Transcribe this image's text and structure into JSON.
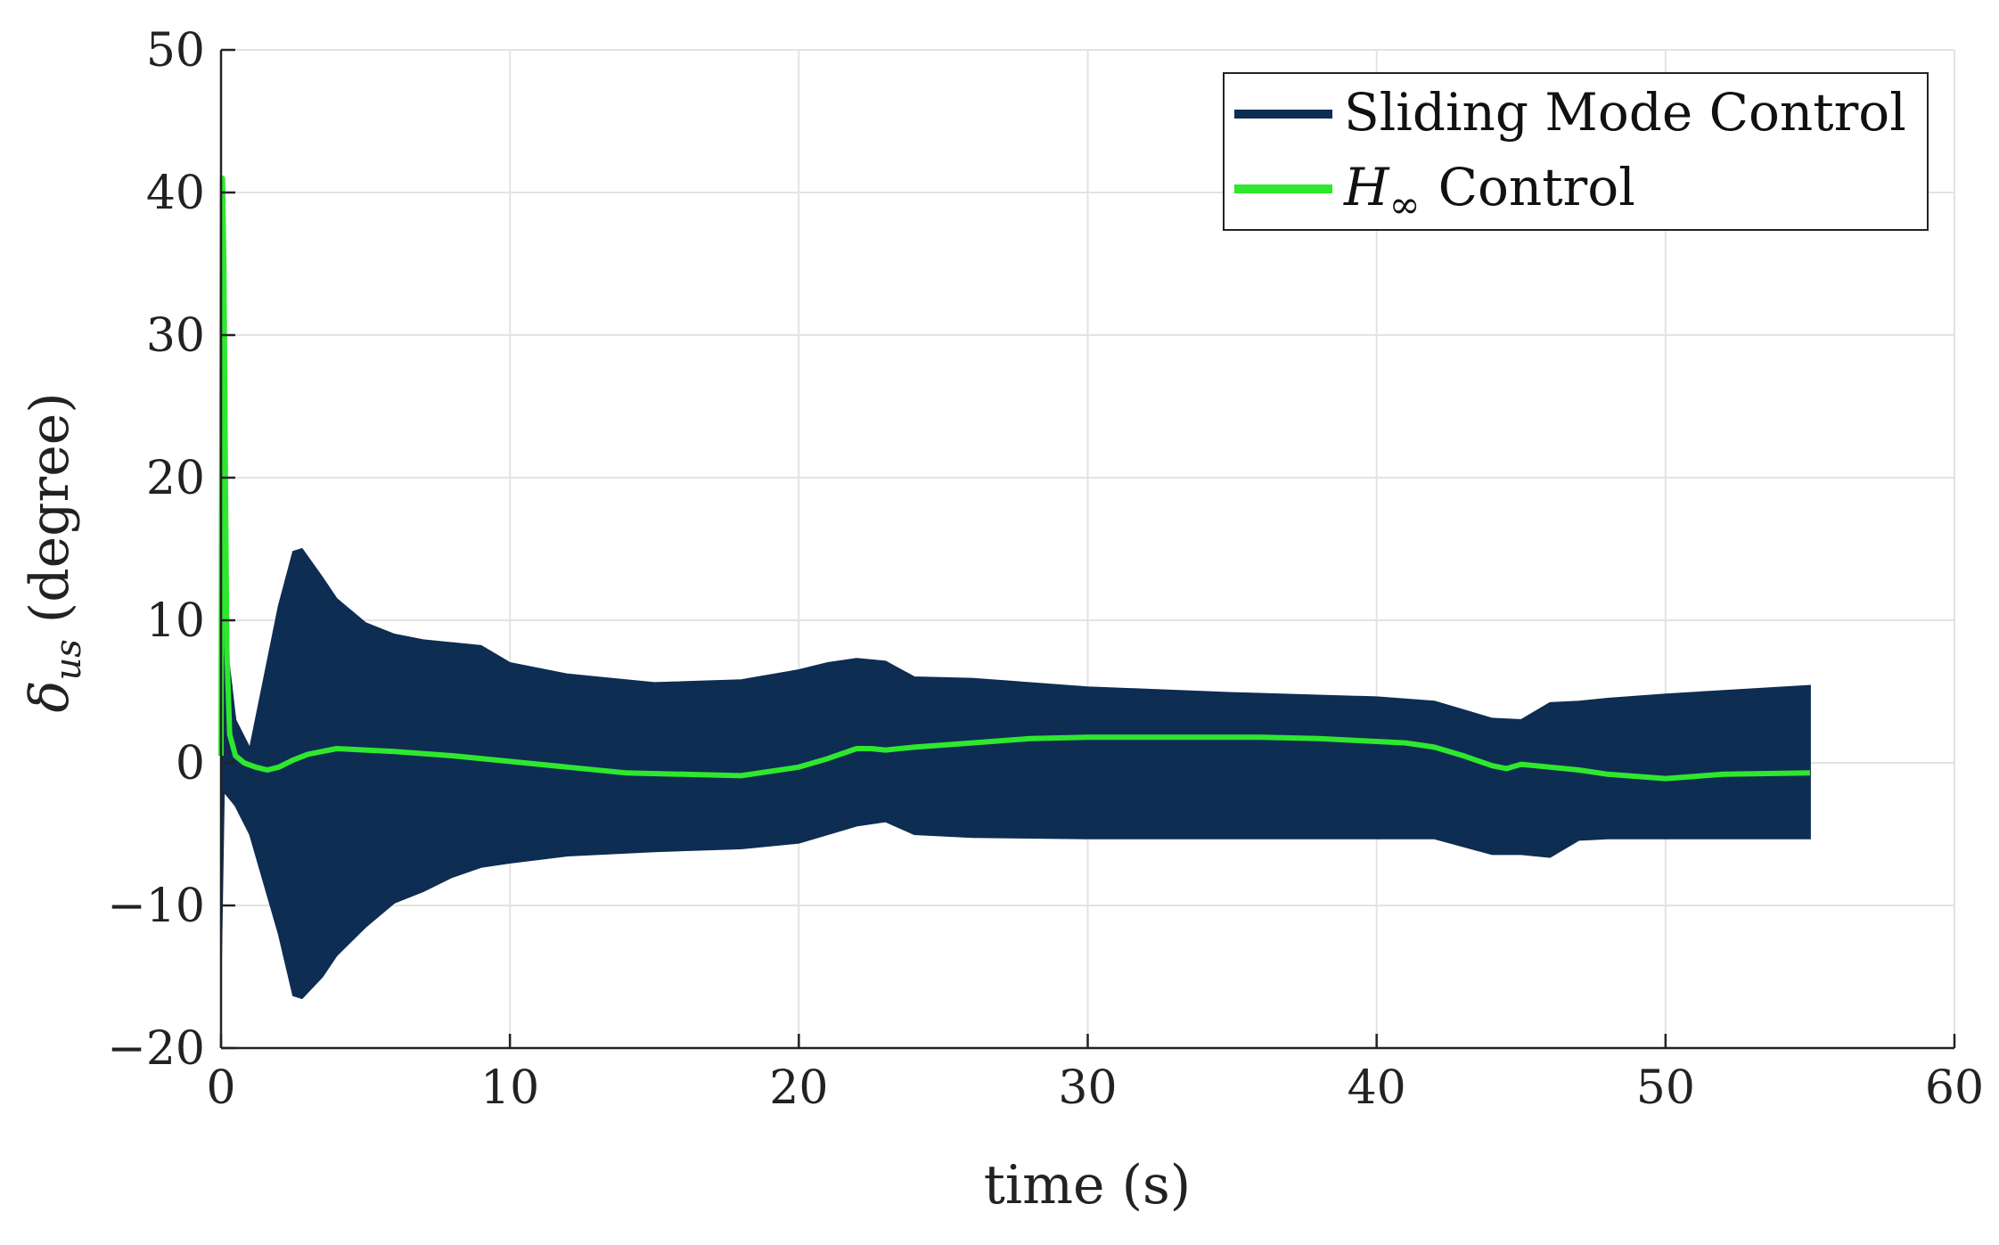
{
  "chart_data": {
    "type": "line",
    "xlabel": "time (s)",
    "ylabel": {
      "symbol": "δ",
      "subscript": "us",
      "unit": "(degree)"
    },
    "xlim": [
      0,
      60
    ],
    "ylim": [
      -20,
      50
    ],
    "xticks": [
      0,
      10,
      20,
      30,
      40,
      50,
      60
    ],
    "yticks": [
      -20,
      -10,
      0,
      10,
      20,
      30,
      40,
      50
    ],
    "xtick_labels": [
      "0",
      "10",
      "20",
      "30",
      "40",
      "50",
      "60"
    ],
    "ytick_labels": [
      "−20",
      "−10",
      "0",
      "10",
      "20",
      "30",
      "40",
      "50"
    ],
    "grid": true,
    "legend_position": "top-right",
    "series": [
      {
        "name": "Sliding Mode Control",
        "style": "high-frequency oscillation band",
        "color": "#0e2d52",
        "envelope_x": [
          0,
          0.1,
          0.5,
          1.0,
          1.5,
          2.0,
          2.5,
          2.8,
          3.5,
          4.0,
          5.0,
          6.0,
          7.0,
          8.0,
          9.0,
          10.0,
          12.0,
          15.0,
          18.0,
          20.0,
          21.0,
          22.0,
          23.0,
          24.0,
          26.0,
          30.0,
          35.0,
          40.0,
          42.0,
          44.0,
          45.0,
          46.0,
          47.0,
          48.0,
          50.0,
          55.0
        ],
        "upper": [
          1,
          10,
          3,
          1,
          6,
          11,
          14.8,
          15,
          13,
          11.5,
          9.8,
          9,
          8.6,
          8.4,
          8.2,
          7,
          6.2,
          5.6,
          5.8,
          6.5,
          7,
          7.3,
          7.1,
          6,
          5.9,
          5.3,
          4.9,
          4.6,
          4.3,
          3.1,
          3.0,
          4.2,
          4.3,
          4.5,
          4.8,
          5.4
        ],
        "lower": [
          -14,
          -2,
          -3,
          -5,
          -8.5,
          -12,
          -16.3,
          -16.5,
          -15,
          -13.5,
          -11.5,
          -9.8,
          -9,
          -8,
          -7.3,
          -7,
          -6.5,
          -6.2,
          -6,
          -5.6,
          -5,
          -4.4,
          -4.1,
          -5,
          -5.2,
          -5.3,
          -5.3,
          -5.3,
          -5.3,
          -6.4,
          -6.4,
          -6.6,
          -5.4,
          -5.3,
          -5.3,
          -5.3
        ]
      },
      {
        "name": "H∞ Control",
        "legend_label": {
          "symbol": "H",
          "subscript": "∞",
          "text": "Control"
        },
        "color": "#2ee82e",
        "x": [
          0,
          0.05,
          0.1,
          0.15,
          0.2,
          0.3,
          0.5,
          0.8,
          1.2,
          1.6,
          2.0,
          2.5,
          3.0,
          3.5,
          4.0,
          5.0,
          6.0,
          8.0,
          10.0,
          12.0,
          14.0,
          16.0,
          18.0,
          20.0,
          21.0,
          22.0,
          22.5,
          23.0,
          24.0,
          26.0,
          28.0,
          30.0,
          33.0,
          36.0,
          38.0,
          40.0,
          41.0,
          42.0,
          43.0,
          44.0,
          44.5,
          45.0,
          46.0,
          47.0,
          48.0,
          50.0,
          52.0,
          55.0
        ],
        "y": [
          0.5,
          41,
          35,
          20,
          8,
          2,
          0.5,
          0,
          -0.3,
          -0.5,
          -0.3,
          0.2,
          0.6,
          0.8,
          1,
          0.9,
          0.8,
          0.5,
          0.1,
          -0.3,
          -0.7,
          -0.8,
          -0.9,
          -0.3,
          0.3,
          1,
          1,
          0.9,
          1.1,
          1.4,
          1.7,
          1.8,
          1.8,
          1.8,
          1.7,
          1.5,
          1.4,
          1.1,
          0.5,
          -0.2,
          -0.4,
          -0.1,
          -0.3,
          -0.5,
          -0.8,
          -1.1,
          -0.8,
          -0.7
        ]
      }
    ]
  }
}
